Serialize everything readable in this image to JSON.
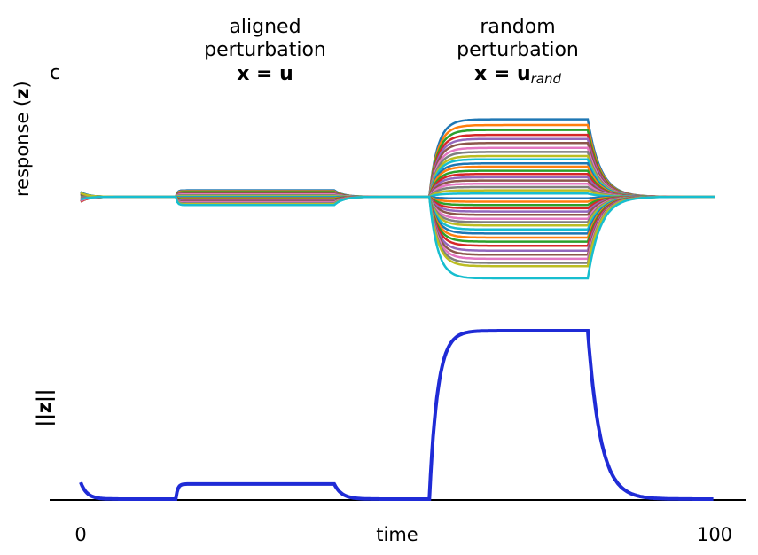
{
  "panel_label": "c",
  "annotations": [
    {
      "lines": [
        "aligned",
        "perturbation"
      ],
      "eq_main": "x = u",
      "eq_sub": ""
    },
    {
      "lines": [
        "random",
        "perturbation"
      ],
      "eq_main": "x = u",
      "eq_sub": "rand"
    }
  ],
  "chart_data": [
    {
      "type": "line",
      "ylabel": "response (z)",
      "ylabel_plain": "response (",
      "ylabel_sym": "z",
      "ylabel_close": ")",
      "xlim": [
        0,
        100
      ],
      "ylim": [
        -1,
        1
      ],
      "grid": false,
      "segments": {
        "decay0": [
          0,
          1.5
        ],
        "aligned": [
          15,
          40
        ],
        "random": [
          55,
          80
        ],
        "end": [
          100
        ]
      },
      "n_traces": 40,
      "random_levels": [
        0.95,
        0.88,
        0.82,
        0.76,
        0.71,
        0.66,
        0.6,
        0.55,
        0.5,
        0.46,
        0.41,
        0.37,
        0.32,
        0.28,
        0.24,
        0.2,
        0.16,
        0.12,
        0.08,
        0.04,
        -0.02,
        -0.06,
        -0.1,
        -0.14,
        -0.18,
        -0.22,
        -0.27,
        -0.31,
        -0.35,
        -0.4,
        -0.45,
        -0.5,
        -0.55,
        -0.6,
        -0.66,
        -0.71,
        -0.76,
        -0.81,
        -0.85,
        -1.0
      ],
      "aligned_levels": [
        0.08,
        0.07,
        0.06,
        0.05,
        0.045,
        0.04,
        0.03,
        0.02,
        0.01,
        0.0,
        -0.01,
        -0.02,
        -0.03,
        -0.04,
        -0.05,
        -0.06,
        -0.07,
        -0.08,
        -0.09,
        -0.1
      ],
      "colors": [
        "#1f77b4",
        "#ff7f0e",
        "#2ca02c",
        "#d62728",
        "#9467bd",
        "#8c564b",
        "#e377c2",
        "#7f7f7f",
        "#bcbd22",
        "#17becf"
      ]
    },
    {
      "type": "line",
      "ylabel": "||z||",
      "xlabel": "time",
      "xticks": [
        "0",
        "100"
      ],
      "xlim": [
        0,
        100
      ],
      "ylim": [
        0,
        1
      ],
      "series": [
        {
          "color": "#1f2bd6",
          "baseline": 0.0,
          "start_value": 0.1,
          "aligned_value": 0.09,
          "random_value": 1.0
        }
      ]
    }
  ]
}
